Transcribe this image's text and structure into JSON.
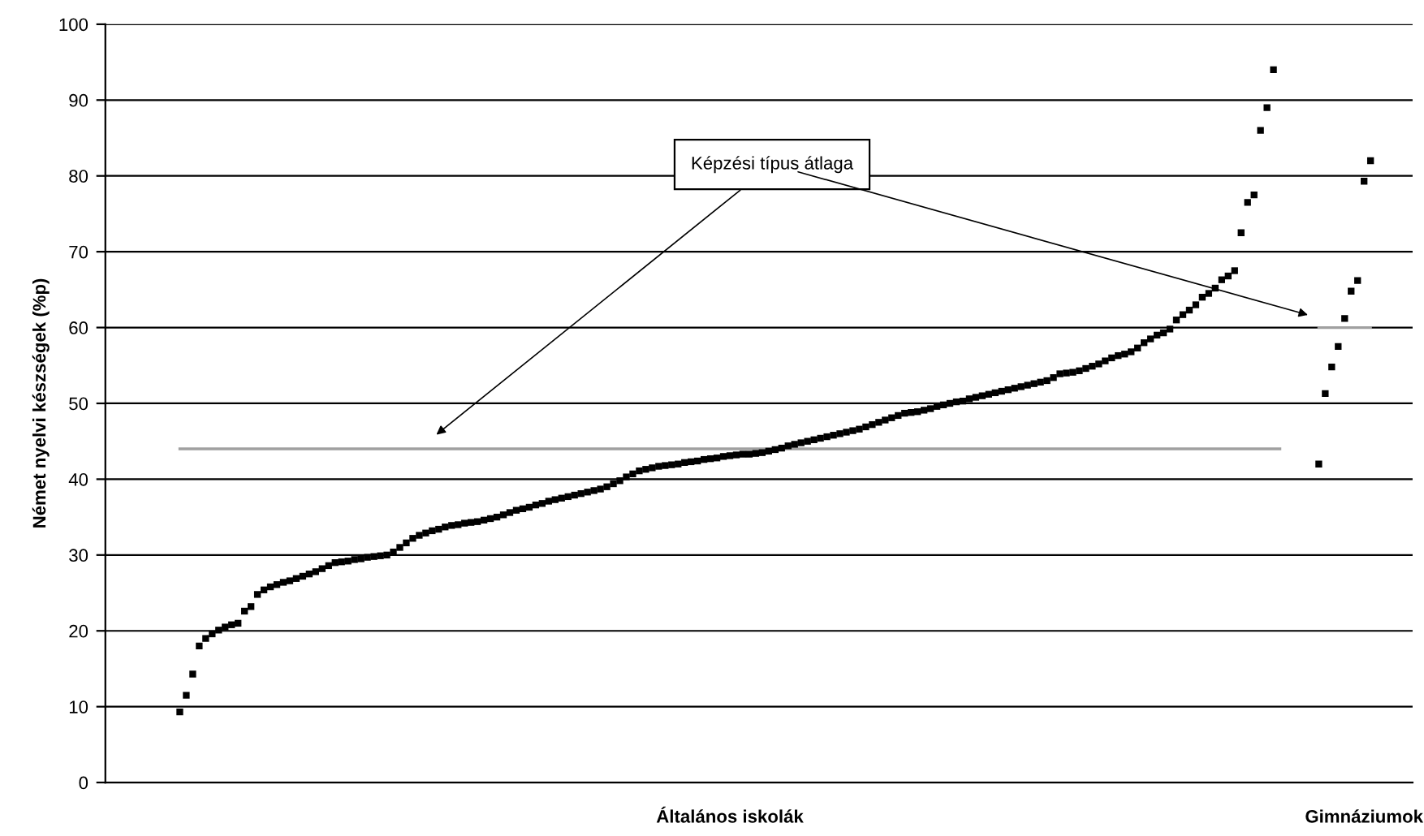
{
  "chart_data": {
    "type": "scatter",
    "ylabel": "Német nyelvi készségek (%p)",
    "ylim": [
      0,
      100
    ],
    "yticks": [
      0,
      10,
      20,
      30,
      40,
      50,
      60,
      70,
      80,
      90,
      100
    ],
    "grid": "y",
    "legend": false,
    "categories": [
      null,
      null,
      null,
      null,
      null,
      null,
      null,
      null,
      null,
      null,
      null,
      null,
      null,
      null,
      null,
      null,
      null,
      null,
      null,
      null,
      null,
      null,
      null,
      null,
      null,
      null,
      null,
      null,
      null,
      null,
      null,
      null,
      null,
      null,
      null,
      null,
      null,
      null,
      null,
      null,
      null,
      null,
      null,
      null,
      null,
      null,
      null,
      null,
      null,
      null,
      null,
      null,
      null,
      null,
      null,
      null,
      null,
      null,
      null,
      null,
      null,
      null,
      null,
      null,
      null,
      null,
      null,
      null,
      null,
      null,
      null,
      null,
      null,
      null,
      null,
      null,
      null,
      null,
      null,
      null,
      null,
      null,
      null,
      null,
      null,
      null,
      null,
      null,
      null,
      null,
      null,
      null,
      null,
      null,
      null,
      null,
      "Általános iskolák",
      null,
      null,
      null,
      null,
      null,
      null,
      null,
      null,
      null,
      null,
      null,
      null,
      null,
      null,
      null,
      null,
      null,
      null,
      null,
      null,
      null,
      null,
      null,
      null,
      null,
      null,
      null,
      null,
      null,
      null,
      null,
      null,
      null,
      null,
      null,
      null,
      null,
      null,
      null,
      null,
      null,
      null,
      null,
      null,
      null,
      null,
      null,
      null,
      null,
      null,
      null,
      null,
      null,
      null,
      null,
      null,
      null,
      null,
      null,
      null,
      null,
      null,
      null,
      null,
      null,
      null,
      null,
      null,
      null,
      null,
      null,
      null,
      null,
      null,
      null,
      null,
      null,
      null,
      null,
      null,
      null,
      null,
      null,
      null,
      null,
      null,
      null,
      null,
      null,
      null,
      null,
      null,
      null,
      null,
      null,
      null,
      null,
      "Gimnáziumok",
      null,
      null,
      null,
      null,
      null,
      null,
      null
    ],
    "series": [
      {
        "color": "#000000",
        "marker": "square",
        "values": [
          null,
          null,
          null,
          null,
          null,
          null,
          null,
          null,
          null,
          null,
          null,
          9.3,
          11.5,
          14.3,
          18,
          19,
          19.6,
          20.1,
          20.5,
          20.8,
          21,
          22.6,
          23.2,
          24.8,
          25.4,
          25.8,
          26.1,
          26.4,
          26.6,
          26.9,
          27.2,
          27.5,
          27.8,
          28.2,
          28.6,
          29,
          29.1,
          29.2,
          29.4,
          29.5,
          29.7,
          29.8,
          29.9,
          30,
          30.4,
          31,
          31.6,
          32.2,
          32.6,
          32.9,
          33.2,
          33.4,
          33.7,
          33.9,
          34,
          34.2,
          34.3,
          34.4,
          34.6,
          34.8,
          35,
          35.3,
          35.6,
          35.9,
          36.1,
          36.3,
          36.6,
          36.8,
          37.1,
          37.3,
          37.5,
          37.7,
          37.9,
          38.1,
          38.3,
          38.5,
          38.7,
          39,
          39.4,
          39.8,
          40.3,
          40.7,
          41.1,
          41.3,
          41.5,
          41.7,
          41.8,
          41.9,
          42,
          42.2,
          42.3,
          42.4,
          42.6,
          42.7,
          42.8,
          43,
          43.1,
          43.2,
          43.3,
          43.3,
          43.4,
          43.5,
          43.7,
          43.9,
          44.1,
          44.4,
          44.6,
          44.8,
          45,
          45.2,
          45.4,
          45.6,
          45.8,
          46,
          46.2,
          46.4,
          46.6,
          46.9,
          47.2,
          47.5,
          47.8,
          48.1,
          48.4,
          48.7,
          48.8,
          48.9,
          49.1,
          49.3,
          49.6,
          49.8,
          50,
          50.2,
          50.3,
          50.6,
          50.8,
          51,
          51.2,
          51.4,
          51.6,
          51.8,
          52,
          52.2,
          52.4,
          52.6,
          52.8,
          53,
          53.4,
          53.9,
          54,
          54.1,
          54.3,
          54.6,
          54.9,
          55.2,
          55.6,
          56,
          56.3,
          56.5,
          56.8,
          57.3,
          58,
          58.5,
          59,
          59.3,
          59.8,
          61,
          61.7,
          62.3,
          63,
          64,
          64.5,
          65.2,
          66.3,
          66.8,
          67.5,
          72.5,
          76.5,
          77.5,
          86,
          89,
          94,
          null,
          null,
          null,
          null,
          null,
          null,
          null,
          null,
          null,
          null,
          null,
          null,
          null,
          null,
          null,
          null,
          null,
          null,
          null,
          null,
          null
        ]
      },
      {
        "color": "#000000",
        "marker": "square",
        "values": [
          null,
          null,
          null,
          null,
          null,
          null,
          null,
          null,
          null,
          null,
          null,
          null,
          null,
          null,
          null,
          null,
          null,
          null,
          null,
          null,
          null,
          null,
          null,
          null,
          null,
          null,
          null,
          null,
          null,
          null,
          null,
          null,
          null,
          null,
          null,
          null,
          null,
          null,
          null,
          null,
          null,
          null,
          null,
          null,
          null,
          null,
          null,
          null,
          null,
          null,
          null,
          null,
          null,
          null,
          null,
          null,
          null,
          null,
          null,
          null,
          null,
          null,
          null,
          null,
          null,
          null,
          null,
          null,
          null,
          null,
          null,
          null,
          null,
          null,
          null,
          null,
          null,
          null,
          null,
          null,
          null,
          null,
          null,
          null,
          null,
          null,
          null,
          null,
          null,
          null,
          null,
          null,
          null,
          null,
          null,
          null,
          null,
          null,
          null,
          null,
          null,
          null,
          null,
          null,
          null,
          null,
          null,
          null,
          null,
          null,
          null,
          null,
          null,
          null,
          null,
          null,
          null,
          null,
          null,
          null,
          null,
          null,
          null,
          null,
          null,
          null,
          null,
          null,
          null,
          null,
          null,
          null,
          null,
          null,
          null,
          null,
          null,
          null,
          null,
          null,
          null,
          null,
          null,
          null,
          null,
          null,
          null,
          null,
          null,
          null,
          null,
          null,
          null,
          null,
          null,
          null,
          null,
          null,
          null,
          null,
          null,
          null,
          null,
          null,
          null,
          null,
          null,
          null,
          null,
          null,
          null,
          null,
          null,
          null,
          null,
          null,
          null,
          null,
          null,
          null,
          null,
          null,
          null,
          null,
          null,
          null,
          null,
          42,
          51.3,
          54.8,
          57.5,
          61.2,
          64.8,
          66.2,
          79.3,
          82,
          null,
          null,
          null,
          null,
          null,
          null
        ]
      },
      {
        "type": "line",
        "color": "#a0a0a0",
        "values": [
          null,
          null,
          null,
          null,
          null,
          null,
          null,
          null,
          null,
          null,
          null,
          44,
          null,
          null,
          null,
          null,
          null,
          null,
          null,
          null,
          null,
          null,
          null,
          null,
          null,
          null,
          null,
          null,
          null,
          null,
          null,
          null,
          null,
          null,
          null,
          null,
          null,
          null,
          null,
          null,
          null,
          null,
          null,
          null,
          null,
          null,
          null,
          null,
          null,
          null,
          null,
          null,
          null,
          null,
          null,
          null,
          null,
          null,
          null,
          null,
          null,
          null,
          null,
          null,
          null,
          null,
          null,
          null,
          null,
          null,
          null,
          null,
          null,
          null,
          null,
          null,
          null,
          null,
          null,
          null,
          null,
          null,
          null,
          null,
          null,
          null,
          null,
          null,
          null,
          null,
          null,
          null,
          null,
          null,
          null,
          null,
          null,
          null,
          null,
          null,
          null,
          null,
          null,
          null,
          null,
          null,
          null,
          null,
          null,
          null,
          null,
          null,
          null,
          null,
          null,
          null,
          null,
          null,
          null,
          null,
          null,
          null,
          null,
          null,
          null,
          null,
          null,
          null,
          null,
          null,
          null,
          null,
          null,
          null,
          null,
          null,
          null,
          null,
          null,
          null,
          null,
          null,
          null,
          null,
          null,
          null,
          null,
          null,
          null,
          null,
          null,
          null,
          null,
          null,
          null,
          null,
          null,
          null,
          null,
          null,
          null,
          null,
          null,
          null,
          null,
          null,
          null,
          null,
          null,
          null,
          null,
          null,
          null,
          null,
          null,
          null,
          null,
          null,
          null,
          null,
          null,
          44,
          null,
          null,
          null,
          null,
          null,
          null,
          null,
          null,
          null,
          null,
          null,
          null,
          null,
          null,
          null,
          null,
          null,
          null,
          null,
          null
        ]
      },
      {
        "type": "line",
        "color": "#a0a0a0",
        "values": [
          null,
          null,
          null,
          null,
          null,
          null,
          null,
          null,
          null,
          null,
          null,
          null,
          null,
          null,
          null,
          null,
          null,
          null,
          null,
          null,
          null,
          null,
          null,
          null,
          null,
          null,
          null,
          null,
          null,
          null,
          null,
          null,
          null,
          null,
          null,
          null,
          null,
          null,
          null,
          null,
          null,
          null,
          null,
          null,
          null,
          null,
          null,
          null,
          null,
          null,
          null,
          null,
          null,
          null,
          null,
          null,
          null,
          null,
          null,
          null,
          null,
          null,
          null,
          null,
          null,
          null,
          null,
          null,
          null,
          null,
          null,
          null,
          null,
          null,
          null,
          null,
          null,
          null,
          null,
          null,
          null,
          null,
          null,
          null,
          null,
          null,
          null,
          null,
          null,
          null,
          null,
          null,
          null,
          null,
          null,
          null,
          null,
          null,
          null,
          null,
          null,
          null,
          null,
          null,
          null,
          null,
          null,
          null,
          null,
          null,
          null,
          null,
          null,
          null,
          null,
          null,
          null,
          null,
          null,
          null,
          null,
          null,
          null,
          null,
          null,
          null,
          null,
          null,
          null,
          null,
          null,
          null,
          null,
          null,
          null,
          null,
          null,
          null,
          null,
          null,
          null,
          null,
          null,
          null,
          null,
          null,
          null,
          null,
          null,
          null,
          null,
          null,
          null,
          null,
          null,
          null,
          null,
          null,
          null,
          null,
          null,
          null,
          null,
          null,
          null,
          null,
          null,
          null,
          null,
          null,
          null,
          null,
          null,
          null,
          null,
          null,
          null,
          null,
          null,
          null,
          null,
          null,
          null,
          null,
          null,
          null,
          null,
          60,
          null,
          null,
          null,
          null,
          null,
          null,
          null,
          60,
          null,
          null,
          null,
          null,
          null,
          null
        ]
      }
    ],
    "annotations": [
      "Képzési típus átlaga"
    ]
  }
}
